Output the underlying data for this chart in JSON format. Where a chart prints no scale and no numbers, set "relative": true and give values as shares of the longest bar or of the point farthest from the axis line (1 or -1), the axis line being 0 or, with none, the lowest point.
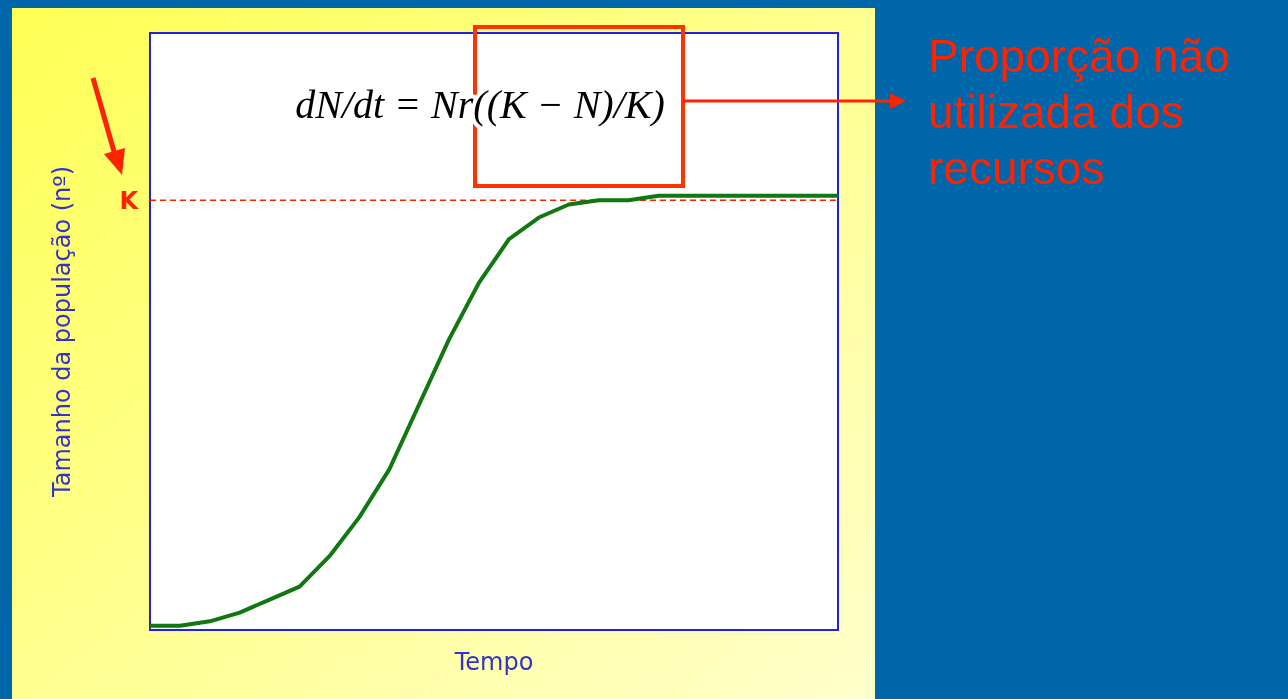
{
  "chart_data": {
    "type": "line",
    "relative": true,
    "xlabel": "Tempo",
    "ylabel": "Tamanho da população (nº)",
    "categories": [
      null,
      null,
      null,
      null,
      null,
      null,
      null,
      null,
      null,
      null,
      null,
      null,
      null,
      null,
      null,
      null,
      null,
      null,
      null,
      null,
      null,
      null,
      null,
      null
    ],
    "series": [
      {
        "color": "#117711",
        "values": [
          0.01,
          0.01,
          0.02,
          0.04,
          0.07,
          0.1,
          0.17,
          0.26,
          0.37,
          0.52,
          0.67,
          0.8,
          0.9,
          0.95,
          0.98,
          0.99,
          0.99,
          1,
          1,
          1,
          1,
          1,
          1,
          1
        ]
      }
    ],
    "ref_lines": [
      {
        "axis": "y",
        "value": 0.99,
        "label": "K",
        "color": "#ff2200",
        "line_style": "dashed"
      }
    ],
    "annotations": [
      "dN/dt = Nr((K − N)/K)",
      "Proporção não utilizada dos recursos"
    ],
    "line_style": "solid"
  }
}
